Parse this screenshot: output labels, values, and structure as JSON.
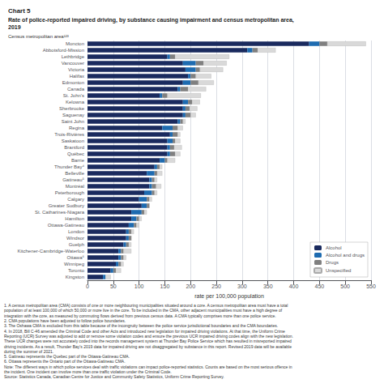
{
  "chart_data": {
    "type": "bar",
    "orientation": "horizontal",
    "stacked": true,
    "title": "Chart 5",
    "subtitle": [
      "Rate of police-reported impaired driving, by substance causing impairment and census metropolitan area,",
      "2019"
    ],
    "xlabel": "rate per 100,000 population",
    "ylabel": "Census metropolitan area¹²³",
    "categories": [
      "Moncton",
      "Abbotsford-Mission",
      "Lethbridge",
      "Vancouver",
      "Victoria",
      "Halifax",
      "Edmonton",
      "Canada",
      "St. John's",
      "Kelowna",
      "Sherbrooke",
      "Saguenay",
      "Saint John",
      "Regina",
      "Trois-Rivières",
      "Saskatoon",
      "Brantford",
      "Québec",
      "Barrie",
      "Thunder Bay⁴",
      "Belleville",
      "Gatineau⁵",
      "Montréal",
      "Peterborough",
      "Calgary",
      "Greater Sudbury",
      "St. Catharines-Niagara",
      "Hamilton",
      "Ottawa-Gatineau",
      "London",
      "Windsor",
      "Guelph",
      "Kitchener-Cambridge-Waterloo",
      "Ottawa⁶",
      "Winnipeg",
      "Toronto",
      "Kingston"
    ],
    "series": [
      {
        "name": "Alcohol",
        "color": "#1a2a5e",
        "values": [
          430,
          310,
          155,
          185,
          190,
          195,
          185,
          175,
          140,
          185,
          185,
          185,
          175,
          145,
          160,
          155,
          155,
          155,
          140,
          130,
          115,
          120,
          120,
          110,
          100,
          105,
          85,
          85,
          80,
          75,
          75,
          70,
          60,
          60,
          55,
          45,
          30
        ]
      },
      {
        "name": "Alcohol and drugs",
        "color": "#1e6bb0",
        "values": [
          20,
          10,
          5,
          25,
          20,
          5,
          15,
          5,
          5,
          10,
          5,
          5,
          5,
          20,
          5,
          10,
          5,
          5,
          10,
          5,
          15,
          5,
          5,
          15,
          15,
          10,
          20,
          10,
          10,
          5,
          5,
          5,
          5,
          5,
          5,
          5,
          5
        ]
      },
      {
        "name": "Drugs",
        "color": "#808080",
        "values": [
          15,
          10,
          10,
          15,
          8,
          10,
          15,
          15,
          10,
          8,
          8,
          10,
          5,
          10,
          10,
          5,
          8,
          10,
          5,
          5,
          5,
          5,
          8,
          5,
          5,
          5,
          5,
          5,
          5,
          5,
          5,
          5,
          5,
          5,
          5,
          5,
          0
        ]
      },
      {
        "name": "Unspecified",
        "color": "#d9d9d9",
        "values": [
          75,
          35,
          105,
          45,
          45,
          30,
          30,
          35,
          65,
          15,
          15,
          10,
          5,
          10,
          5,
          10,
          15,
          10,
          15,
          5,
          10,
          5,
          10,
          5,
          5,
          0,
          5,
          5,
          5,
          5,
          0,
          5,
          15,
          5,
          5,
          10,
          10
        ]
      }
    ],
    "xlim": [
      0,
      550
    ],
    "xticks": [
      0,
      50,
      100,
      150,
      200,
      250,
      300,
      350,
      400,
      450,
      500,
      550
    ],
    "grid": true,
    "legend": "lower right",
    "annotations": [
      "1. A census metropolitan area (CMA) consists of one or more neighbouring municipalities situated around a core. A census metropolitan area must have a total",
      "population of at least 100,000 of which 50,000 or more live in the core. To be included in the CMA, other adjacent municipalities must have a high degree of",
      "integration with the core, as measured by commuting flows derived from previous census data. A CMA typically comprises more than one police service.",
      "2. CMA populations have been adjusted to follow police boundaries.",
      "3. The Oshawa CMA is excluded from this table because of the incongruity between the police service jurisdictional boundaries and the CMA boundaries.",
      "4. In 2018, Bill C-46 amended the Criminal Code and other Acts and introduced new legislation for impaired driving violations. At that time, the Uniform Crime",
      "Reporting (UCR) Survey was adjusted to add or remove some violation codes and ensure the previous UCR impaired driving codes align with the new legislation.",
      "These UCR changes were not accurately coded into the records management system at Thunder Bay Police Service which has resulted in misreported impaired",
      "driving incidents. As a result, Thunder Bay's 2019 data for impaired driving are not disaggregated by substance in this report. Revised 2019 data will be available",
      "during the summer of 2021.",
      "5. Gatineau represents the Quebec part of the Ottawa-Gatineau CMA.",
      "6. Ottawa represents the Ontario part of the Ottawa-Gatineau CMA.",
      "Note: The different ways in which police services deal with traffic violations can impact police-reported statistics. Counts are based on the most serious offence in",
      "the incident. One incident can involve more than one traffic violation under the Criminal Code.",
      "Source: Statistics Canada, Canadian Centre for Justice and Community Safety Statistics, Uniform Crime Reporting Survey."
    ]
  }
}
